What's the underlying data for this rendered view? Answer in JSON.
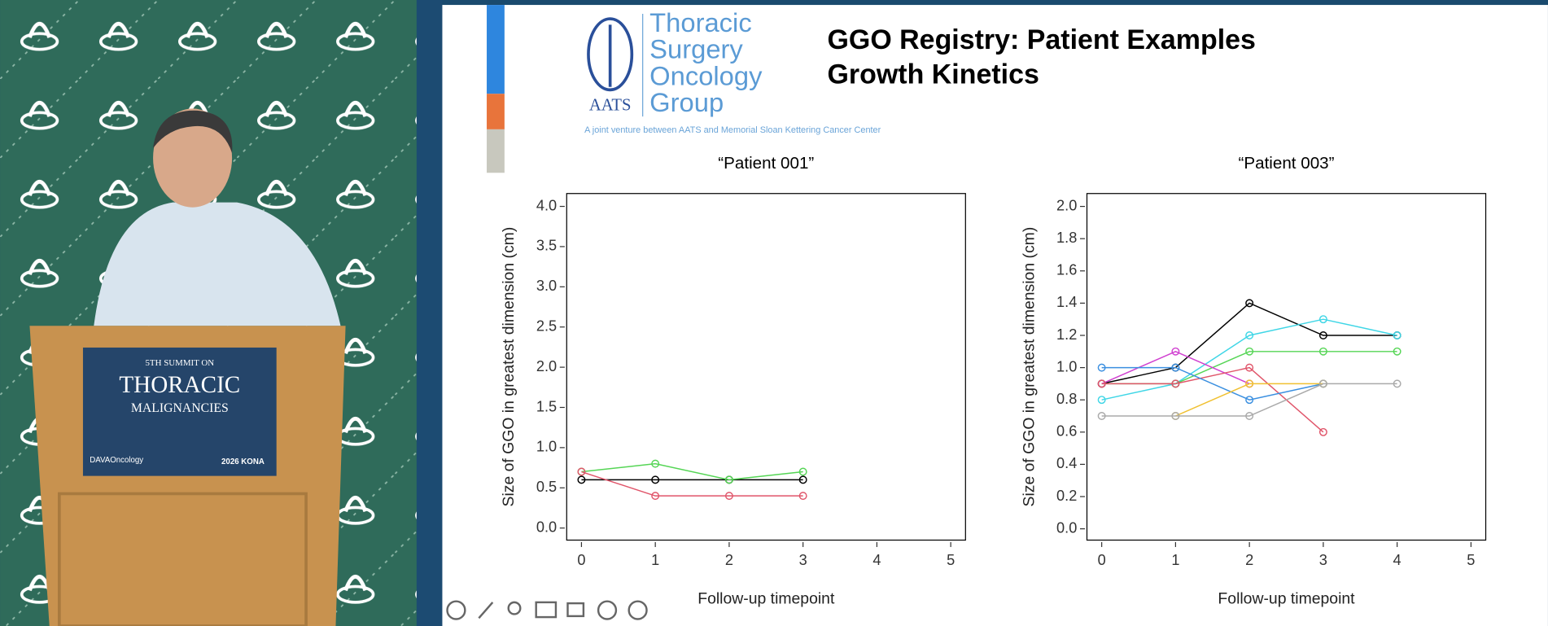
{
  "slide": {
    "title_lines": [
      "GGO Registry: Patient Examples",
      "Growth Kinetics"
    ],
    "logo": {
      "abbreviation": "AATS",
      "name_lines": [
        "Thoracic",
        "Surgery",
        "Oncology",
        "Group"
      ],
      "tagline": "A joint venture between AATS and Memorial Sloan Kettering Cancer Center"
    }
  },
  "video": {
    "podium_sign": [
      "5TH SUMMIT ON",
      "THORACIC",
      "MALIGNANCIES",
      "DAVAOncology",
      "2026 KONA"
    ]
  },
  "chart_data": [
    {
      "type": "line",
      "title": "“Patient 001”",
      "x_label": "Follow-up timepoint",
      "y_label": "Size of GGO in greatest dimension (cm)",
      "x": [
        0,
        1,
        2,
        3
      ],
      "series": [
        {
          "color": "#000000",
          "values": [
            0.6,
            0.6,
            0.6,
            0.6
          ]
        },
        {
          "color": "#55d555",
          "values": [
            0.7,
            0.8,
            0.6,
            0.7
          ]
        },
        {
          "color": "#e0556a",
          "values": [
            0.7,
            0.4,
            0.4,
            0.4
          ]
        }
      ],
      "xlim": [
        -0.2,
        5.2
      ],
      "xticks": [
        0,
        1,
        2,
        3,
        4,
        5
      ],
      "ylim": [
        -0.15,
        4.16
      ],
      "yticks": [
        {
          "value": 0,
          "label": "0.0"
        },
        0.5,
        {
          "value": 1,
          "label": "1.0"
        },
        1.5,
        {
          "value": 2,
          "label": "2.0"
        },
        2.5,
        {
          "value": 3,
          "label": "3.0"
        },
        3.5,
        {
          "value": 4,
          "label": "4.0"
        }
      ]
    },
    {
      "type": "line",
      "title": "“Patient 003”",
      "x_label": "Follow-up timepoint",
      "y_label": "Size of GGO in greatest dimension (cm)",
      "x": [
        0,
        1,
        2,
        3,
        4
      ],
      "series": [
        {
          "color": "#000000",
          "values": [
            0.9,
            1.0,
            1.4,
            1.2,
            1.2
          ]
        },
        {
          "color": "#3fd6e6",
          "values": [
            0.8,
            0.9,
            1.2,
            1.3,
            1.2
          ]
        },
        {
          "color": "#55d555",
          "values": [
            0.9,
            0.9,
            1.1,
            1.1,
            1.1
          ]
        },
        {
          "color": "#d040d0",
          "values": [
            0.9,
            1.1,
            0.9,
            null,
            null
          ]
        },
        {
          "color": "#e0556a",
          "values": [
            0.9,
            0.9,
            1.0,
            0.6,
            null
          ]
        },
        {
          "color": "#3a8fe0",
          "values": [
            1.0,
            1.0,
            0.8,
            0.9,
            null
          ]
        },
        {
          "color": "#f0c030",
          "values": [
            null,
            0.7,
            0.9,
            0.9,
            null
          ]
        },
        {
          "color": "#aaaaaa",
          "values": [
            0.7,
            0.7,
            0.7,
            0.9,
            0.9
          ]
        }
      ],
      "xlim": [
        -0.2,
        5.2
      ],
      "xticks": [
        0,
        1,
        2,
        3,
        4,
        5
      ],
      "ylim": [
        -0.07,
        2.08
      ],
      "yticks": [
        {
          "value": 0,
          "label": "0.0"
        },
        0.2,
        0.4,
        0.6,
        0.8,
        {
          "value": 1,
          "label": "1.0"
        },
        1.2,
        1.4,
        1.6,
        1.8,
        {
          "value": 2,
          "label": "2.0"
        }
      ]
    }
  ]
}
